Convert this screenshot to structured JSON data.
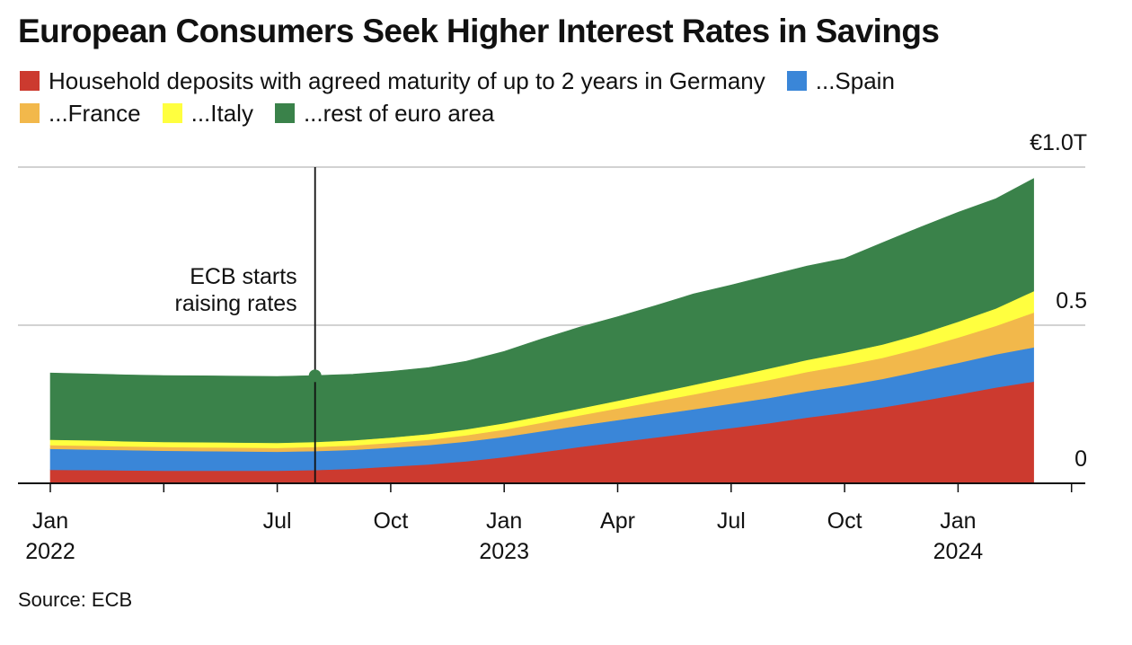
{
  "chart_data": {
    "type": "area",
    "stacked": true,
    "title": "European Consumers Seek Higher Interest Rates in Savings",
    "source": "Source: ECB",
    "x": [
      "2022-01",
      "2022-02",
      "2022-03",
      "2022-04",
      "2022-05",
      "2022-06",
      "2022-07",
      "2022-08",
      "2022-09",
      "2022-10",
      "2022-11",
      "2022-12",
      "2023-01",
      "2023-02",
      "2023-03",
      "2023-04",
      "2023-05",
      "2023-06",
      "2023-07",
      "2023-08",
      "2023-09",
      "2023-10",
      "2023-11",
      "2023-12",
      "2024-01",
      "2024-02",
      "2024-03"
    ],
    "series": [
      {
        "name": "Household deposits with agreed maturity of up to 2 years in Germany",
        "color": "#cc3a2f",
        "values": [
          0.043,
          0.042,
          0.041,
          0.04,
          0.04,
          0.04,
          0.04,
          0.042,
          0.046,
          0.053,
          0.06,
          0.07,
          0.083,
          0.099,
          0.115,
          0.13,
          0.145,
          0.16,
          0.175,
          0.19,
          0.208,
          0.223,
          0.24,
          0.26,
          0.281,
          0.303,
          0.322
        ]
      },
      {
        "name": "...Spain",
        "color": "#3a86d8",
        "values": [
          0.066,
          0.065,
          0.064,
          0.063,
          0.062,
          0.061,
          0.06,
          0.06,
          0.06,
          0.06,
          0.061,
          0.062,
          0.064,
          0.066,
          0.068,
          0.07,
          0.072,
          0.074,
          0.077,
          0.08,
          0.083,
          0.086,
          0.09,
          0.095,
          0.1,
          0.105,
          0.108
        ]
      },
      {
        "name": "...France",
        "color": "#f2b84b",
        "values": [
          0.012,
          0.012,
          0.012,
          0.012,
          0.012,
          0.012,
          0.012,
          0.013,
          0.014,
          0.015,
          0.017,
          0.02,
          0.023,
          0.027,
          0.032,
          0.037,
          0.042,
          0.047,
          0.052,
          0.057,
          0.061,
          0.064,
          0.067,
          0.072,
          0.08,
          0.09,
          0.11
        ]
      },
      {
        "name": "...Italy",
        "color": "#ffff3f",
        "values": [
          0.017,
          0.017,
          0.016,
          0.016,
          0.016,
          0.016,
          0.016,
          0.016,
          0.016,
          0.017,
          0.018,
          0.019,
          0.02,
          0.021,
          0.022,
          0.024,
          0.027,
          0.03,
          0.033,
          0.036,
          0.038,
          0.04,
          0.042,
          0.045,
          0.05,
          0.055,
          0.068
        ]
      },
      {
        "name": "...rest of euro area",
        "color": "#3a824a",
        "values": [
          0.211,
          0.21,
          0.21,
          0.21,
          0.21,
          0.21,
          0.21,
          0.21,
          0.209,
          0.209,
          0.21,
          0.215,
          0.227,
          0.244,
          0.257,
          0.266,
          0.276,
          0.288,
          0.29,
          0.294,
          0.297,
          0.298,
          0.322,
          0.338,
          0.346,
          0.347,
          0.356
        ]
      }
    ],
    "y_ticks": [
      {
        "value": 0,
        "label": "0"
      },
      {
        "value": 0.5,
        "label": "0.5"
      },
      {
        "value": 1.0,
        "label": "€1.0T"
      }
    ],
    "ylim": [
      0,
      1.0
    ],
    "x_ticks": [
      {
        "x": "2022-01",
        "label": "Jan",
        "year": "2022"
      },
      {
        "x": "2022-04",
        "label": "",
        "year": ""
      },
      {
        "x": "2022-07",
        "label": "Jul",
        "year": ""
      },
      {
        "x": "2022-10",
        "label": "Oct",
        "year": ""
      },
      {
        "x": "2023-01",
        "label": "Jan",
        "year": "2023"
      },
      {
        "x": "2023-04",
        "label": "Apr",
        "year": ""
      },
      {
        "x": "2023-07",
        "label": "Jul",
        "year": ""
      },
      {
        "x": "2023-10",
        "label": "Oct",
        "year": ""
      },
      {
        "x": "2024-01",
        "label": "Jan",
        "year": "2024"
      },
      {
        "x": "2024-04",
        "label": "",
        "year": ""
      }
    ],
    "annotation": {
      "x": "2022-08",
      "value": 0.34,
      "lines": [
        "ECB starts",
        "raising rates"
      ]
    },
    "gridlines": true,
    "legend_position": "top"
  }
}
